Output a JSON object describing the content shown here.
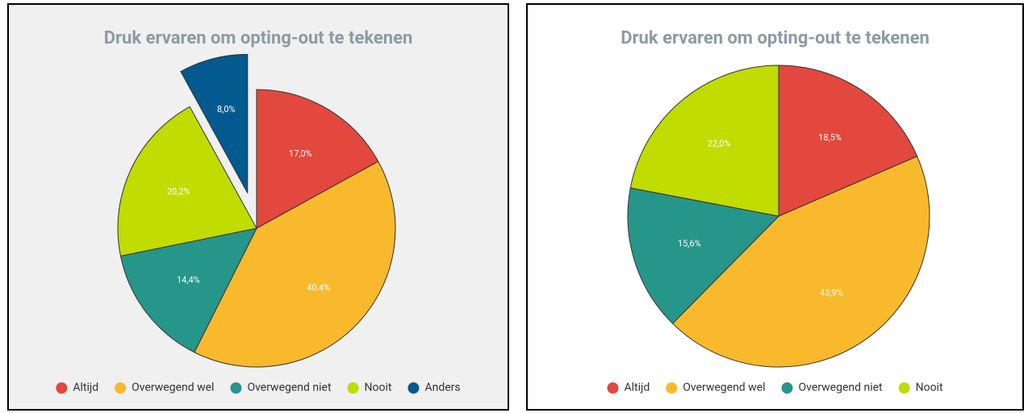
{
  "chart_data": [
    {
      "type": "pie",
      "title": "Druk ervaren om opting-out te tekenen",
      "categories": [
        "Altijd",
        "Overwegend wel",
        "Overwegend niet",
        "Nooit",
        "Anders"
      ],
      "values": [
        17.0,
        40.4,
        14.4,
        20.2,
        8.0
      ],
      "value_labels": [
        "17,0%",
        "40,4%",
        "14,4%",
        "20,2%",
        "8,0%"
      ],
      "colors": [
        "#e2483d",
        "#f9b92d",
        "#27968a",
        "#c0dc00",
        "#035a8f"
      ],
      "explode": [
        false,
        false,
        false,
        false,
        true
      ],
      "legend": "bottom",
      "background": "#f0f0f0"
    },
    {
      "type": "pie",
      "title": "Druk ervaren om opting-out te tekenen",
      "categories": [
        "Altijd",
        "Overwegend wel",
        "Overwegend niet",
        "Nooit"
      ],
      "values": [
        18.5,
        43.9,
        15.6,
        22.0
      ],
      "value_labels": [
        "18,5%",
        "43,9%",
        "15,6%",
        "22,0%"
      ],
      "colors": [
        "#e2483d",
        "#f9b92d",
        "#27968a",
        "#c0dc00"
      ],
      "explode": [
        false,
        false,
        false,
        false
      ],
      "legend": "bottom",
      "background": "#ffffff"
    }
  ]
}
